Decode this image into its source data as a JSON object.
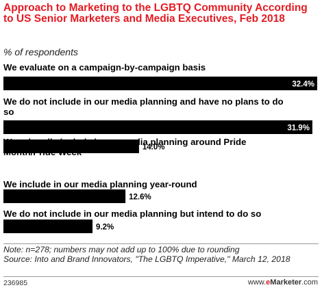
{
  "title": "Approach to Marketing to the LGBTQ Community According to US Senior Marketers and Media Executives, Feb 2018",
  "subtitle": "% of respondents",
  "chart_data": {
    "type": "bar",
    "orientation": "horizontal",
    "categories": [
      "We evaluate on a campaign-by-campaign basis",
      "We do not include in our media planning and have no plans to do so",
      "We primarily include in our media planning around Pride Month/Pride Week",
      "We include in our media planning year-round",
      "We do not include in our media planning but intend to do so"
    ],
    "values": [
      32.4,
      31.9,
      14.0,
      12.6,
      9.2
    ],
    "value_labels": [
      "32.4%",
      "31.9%",
      "14.0%",
      "12.6%",
      "9.2%"
    ],
    "bar_color": "#000000",
    "value_label_color_inside": "#ffffff",
    "value_label_color_outside": "#000000",
    "xlim": [
      0,
      32.4
    ],
    "grid": false,
    "legend": "none"
  },
  "note": "Note: n=278; numbers may not add up to 100% due to rounding",
  "source": "Source: Into and Brand Innovators, \"The LGBTQ Imperative,\" March 12, 2018",
  "chart_id": "236985",
  "brand": {
    "prefix": "www.",
    "e": "e",
    "rest": "Marketer",
    "suffix": ".com"
  },
  "colors": {
    "title": "#e31b23",
    "brand_accent": "#e31b23"
  }
}
